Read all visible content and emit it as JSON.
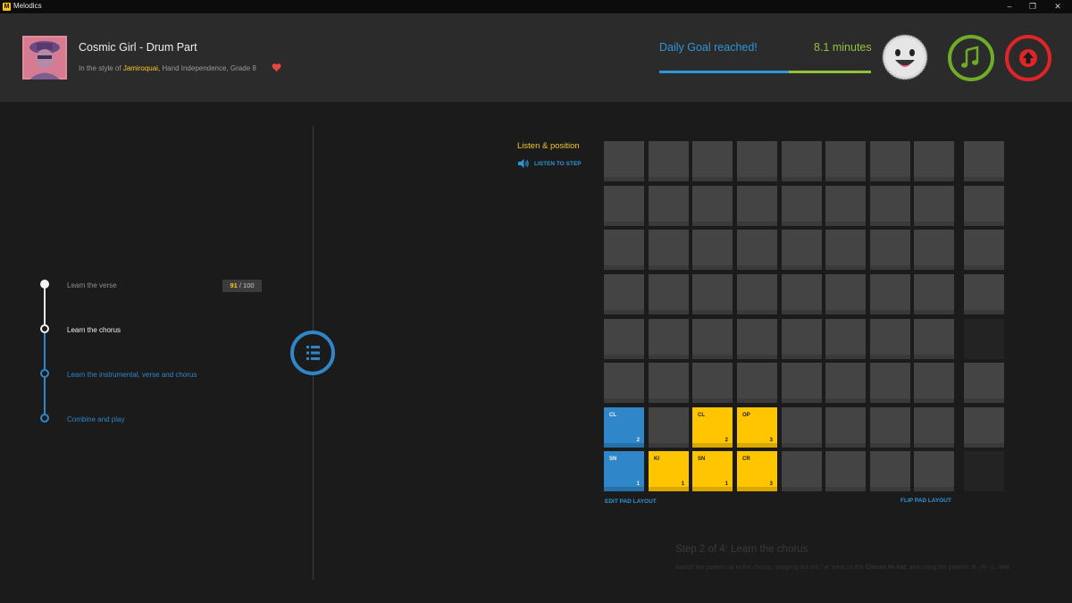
{
  "window": {
    "logo_letter": "M",
    "title": "Melodics",
    "minimize": "–",
    "maximize": "❐",
    "close": "✕"
  },
  "song": {
    "title": "Cosmic Girl - Drum Part",
    "subtitle_prefix": "In the style of ",
    "artist": "Jamiroquai,",
    "subtitle_suffix": " Hand Independence, Grade 8"
  },
  "goal": {
    "text": "Daily Goal reached!",
    "minutes": "8.1 minutes",
    "blue_fraction": 0.61,
    "green_fraction": 0.39
  },
  "colors": {
    "accent_blue": "#2f86c8",
    "accent_yellow": "#ffc600",
    "accent_green": "#70ac28",
    "accent_red": "#e02427"
  },
  "steps": [
    {
      "label": "Learn the verse",
      "state": "completed"
    },
    {
      "label": "Learn the chorus",
      "state": "current"
    },
    {
      "label": "Learn the instrumental, verse and chorus",
      "state": "upcoming"
    },
    {
      "label": "Combine and play",
      "state": "upcoming"
    }
  ],
  "score": {
    "value": "91",
    "separator": " / ",
    "max": "100"
  },
  "listen": {
    "title": "Listen & position",
    "link": "LISTEN TO STEP",
    "icon": "speaker-icon"
  },
  "pads": {
    "rows": 8,
    "grid_cols": 8,
    "side_dim_rows": [
      4,
      7
    ],
    "active": [
      {
        "row": 6,
        "col": 0,
        "label": "CL",
        "count": "2",
        "color": "blue"
      },
      {
        "row": 6,
        "col": 2,
        "label": "CL",
        "count": "2",
        "color": "yellow"
      },
      {
        "row": 6,
        "col": 3,
        "label": "OP",
        "count": "3",
        "color": "yellow"
      },
      {
        "row": 7,
        "col": 0,
        "label": "SN",
        "count": "1",
        "color": "blue"
      },
      {
        "row": 7,
        "col": 1,
        "label": "KI",
        "count": "1",
        "color": "yellow"
      },
      {
        "row": 7,
        "col": 2,
        "label": "SN",
        "count": "1",
        "color": "yellow"
      },
      {
        "row": 7,
        "col": 3,
        "label": "CR",
        "count": "3",
        "color": "yellow"
      }
    ],
    "edit_link": "EDIT PAD LAYOUT",
    "flip_link": "FLIP PAD LAYOUT"
  },
  "step_info": {
    "heading": "Step 2 of 4: Learn the chorus",
    "desc_part1": "Switch the pattern up in the chorus, skipping out the \"",
    "desc_bold1": "-e",
    "desc_part2": "\" beat on the ",
    "desc_bold2": "Closed Hi-hat",
    "desc_part3": ", and using the pattern: R - R - L. Wat"
  }
}
